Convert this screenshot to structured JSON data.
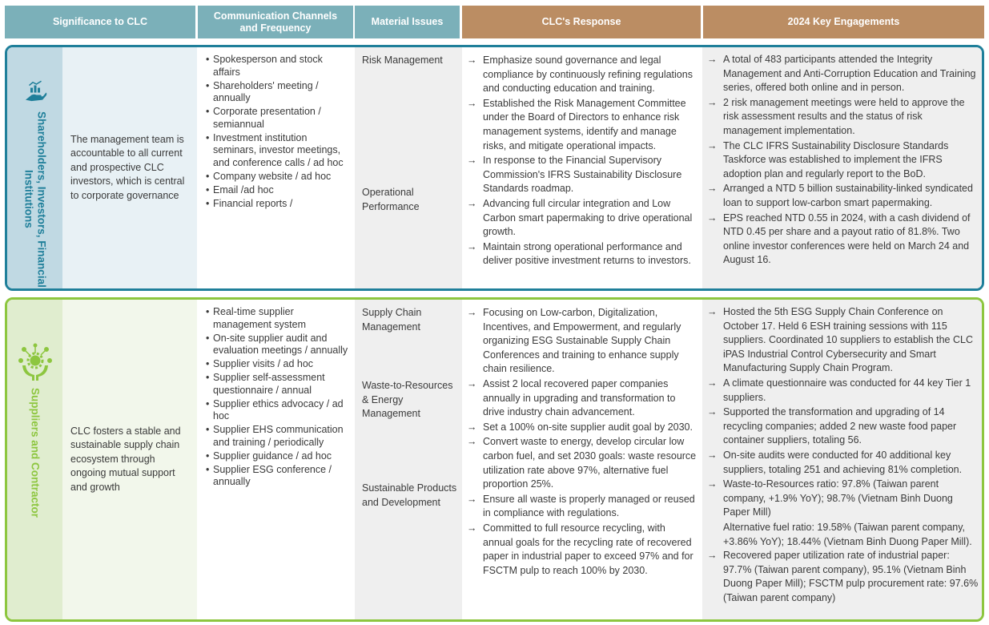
{
  "headers": {
    "significance": "Significance to CLC",
    "channels": "Communication Channels and Frequency",
    "issues": "Material Issues",
    "response": "CLC's Response",
    "engagements": "2024 Key Engagements"
  },
  "colors": {
    "header_teal": "#7bb0b9",
    "header_brown": "#bb8d63",
    "row1_border": "#1f7f9a",
    "row2_border": "#8dc63f"
  },
  "rows": [
    {
      "stakeholder": "Shareholders, Investors, Financial Institutions",
      "icon": "hand-chart-icon",
      "significance": "The management team is accountable to all current and prospective CLC investors, which is central to corporate governance",
      "channels": [
        "Spokesperson and stock affairs",
        "Shareholders' meeting / annually",
        "Corporate presentation / semiannual",
        "Investment institution seminars, investor meetings, and conference calls / ad hoc",
        "Company website / ad hoc",
        "Email /ad hoc",
        "Financial reports /"
      ],
      "issues": [
        "Risk Management",
        "Operational Performance"
      ],
      "response": [
        "Emphasize sound governance and legal compliance by continuously refining regulations and conducting education and training.",
        "Established the Risk Management Committee under the Board of Directors to enhance risk management systems, identify and manage risks, and mitigate operational impacts.",
        "In response to the Financial Supervisory Commission's IFRS Sustainability Disclosure Standards roadmap.",
        "Advancing full circular integration and Low Carbon smart papermaking to drive operational growth.",
        "Maintain strong operational performance and deliver positive investment returns to investors."
      ],
      "engagements": [
        "A total of 483 participants attended the Integrity Management and Anti-Corruption Education and Training series, offered both online and in person.",
        "2 risk management meetings were held to approve the risk assessment results and the status of risk management implementation.",
        "The CLC IFRS Sustainability Disclosure Standards Taskforce was established to implement the IFRS adoption plan and regularly report to the BoD.",
        "Arranged a NTD 5 billion sustainability-linked syndicated loan to support low-carbon smart papermaking.",
        "EPS reached NTD 0.55 in 2024, with a cash dividend of NTD 0.45 per share and a payout ratio of 81.8%. Two online investor conferences were held on March 24 and August 16."
      ]
    },
    {
      "stakeholder": "Suppliers and Contractor",
      "icon": "hands-gear-network-icon",
      "significance": "CLC fosters a stable and sustainable supply chain ecosystem through ongoing mutual support and growth",
      "channels": [
        "Real-time supplier management system",
        "On-site supplier audit and evaluation meetings / annually",
        "Supplier visits / ad hoc",
        "Supplier self-assessment questionnaire / annual",
        "Supplier ethics advocacy  / ad hoc",
        "Supplier EHS communication and training / periodically",
        "Supplier guidance / ad hoc",
        "Supplier ESG conference / annually"
      ],
      "issues": [
        "Supply Chain Management",
        "Waste-to-Resources & Energy Management",
        "Sustainable Products and Development"
      ],
      "response": [
        "Focusing on Low-carbon, Digitalization, Incentives, and Empowerment, and regularly organizing ESG Sustainable Supply Chain Conferences and training to enhance supply chain resilience.",
        "Assist 2 local recovered paper companies annually in upgrading and transformation to drive industry chain advancement.",
        "Set a 100% on-site supplier audit goal by 2030.",
        "Convert waste to energy, develop circular low carbon fuel, and set 2030 goals: waste resource utilization rate above 97%, alternative fuel proportion 25%.",
        "Ensure all waste is properly managed or reused in compliance with regulations.",
        "Committed to full resource recycling, with annual goals for the recycling rate of recovered paper in industrial paper to exceed 97% and for FSCTM pulp to reach 100% by 2030."
      ],
      "engagements": [
        "Hosted the 5th ESG Supply Chain Conference on October 17. Held 6 ESH training sessions with 115 suppliers. Coordinated 10 suppliers to establish the CLC iPAS Industrial Control Cybersecurity and Smart Manufacturing Supply Chain Program.",
        "A climate questionnaire was conducted for 44 key Tier 1 suppliers.",
        "Supported the transformation and upgrading of 14 recycling companies; added 2 new waste food paper container suppliers, totaling 56.",
        "On-site audits were conducted for 40 additional key suppliers, totaling 251 and achieving 81% completion.",
        "Waste-to-Resources ratio: 97.8% (Taiwan parent company, +1.9% YoY); 98.7% (Vietnam Binh Duong Paper Mill)",
        "Recovered paper utilization rate of industrial paper: 97.7% (Taiwan parent company), 95.1% (Vietnam Binh Duong Paper Mill); FSCTM pulp procurement rate: 97.6% (Taiwan parent company)"
      ],
      "engagement_note": "Alternative fuel ratio: 19.58% (Taiwan parent company, +3.86% YoY); 18.44% (Vietnam Binh Duong Paper Mill).",
      "arrow": "→"
    }
  ]
}
